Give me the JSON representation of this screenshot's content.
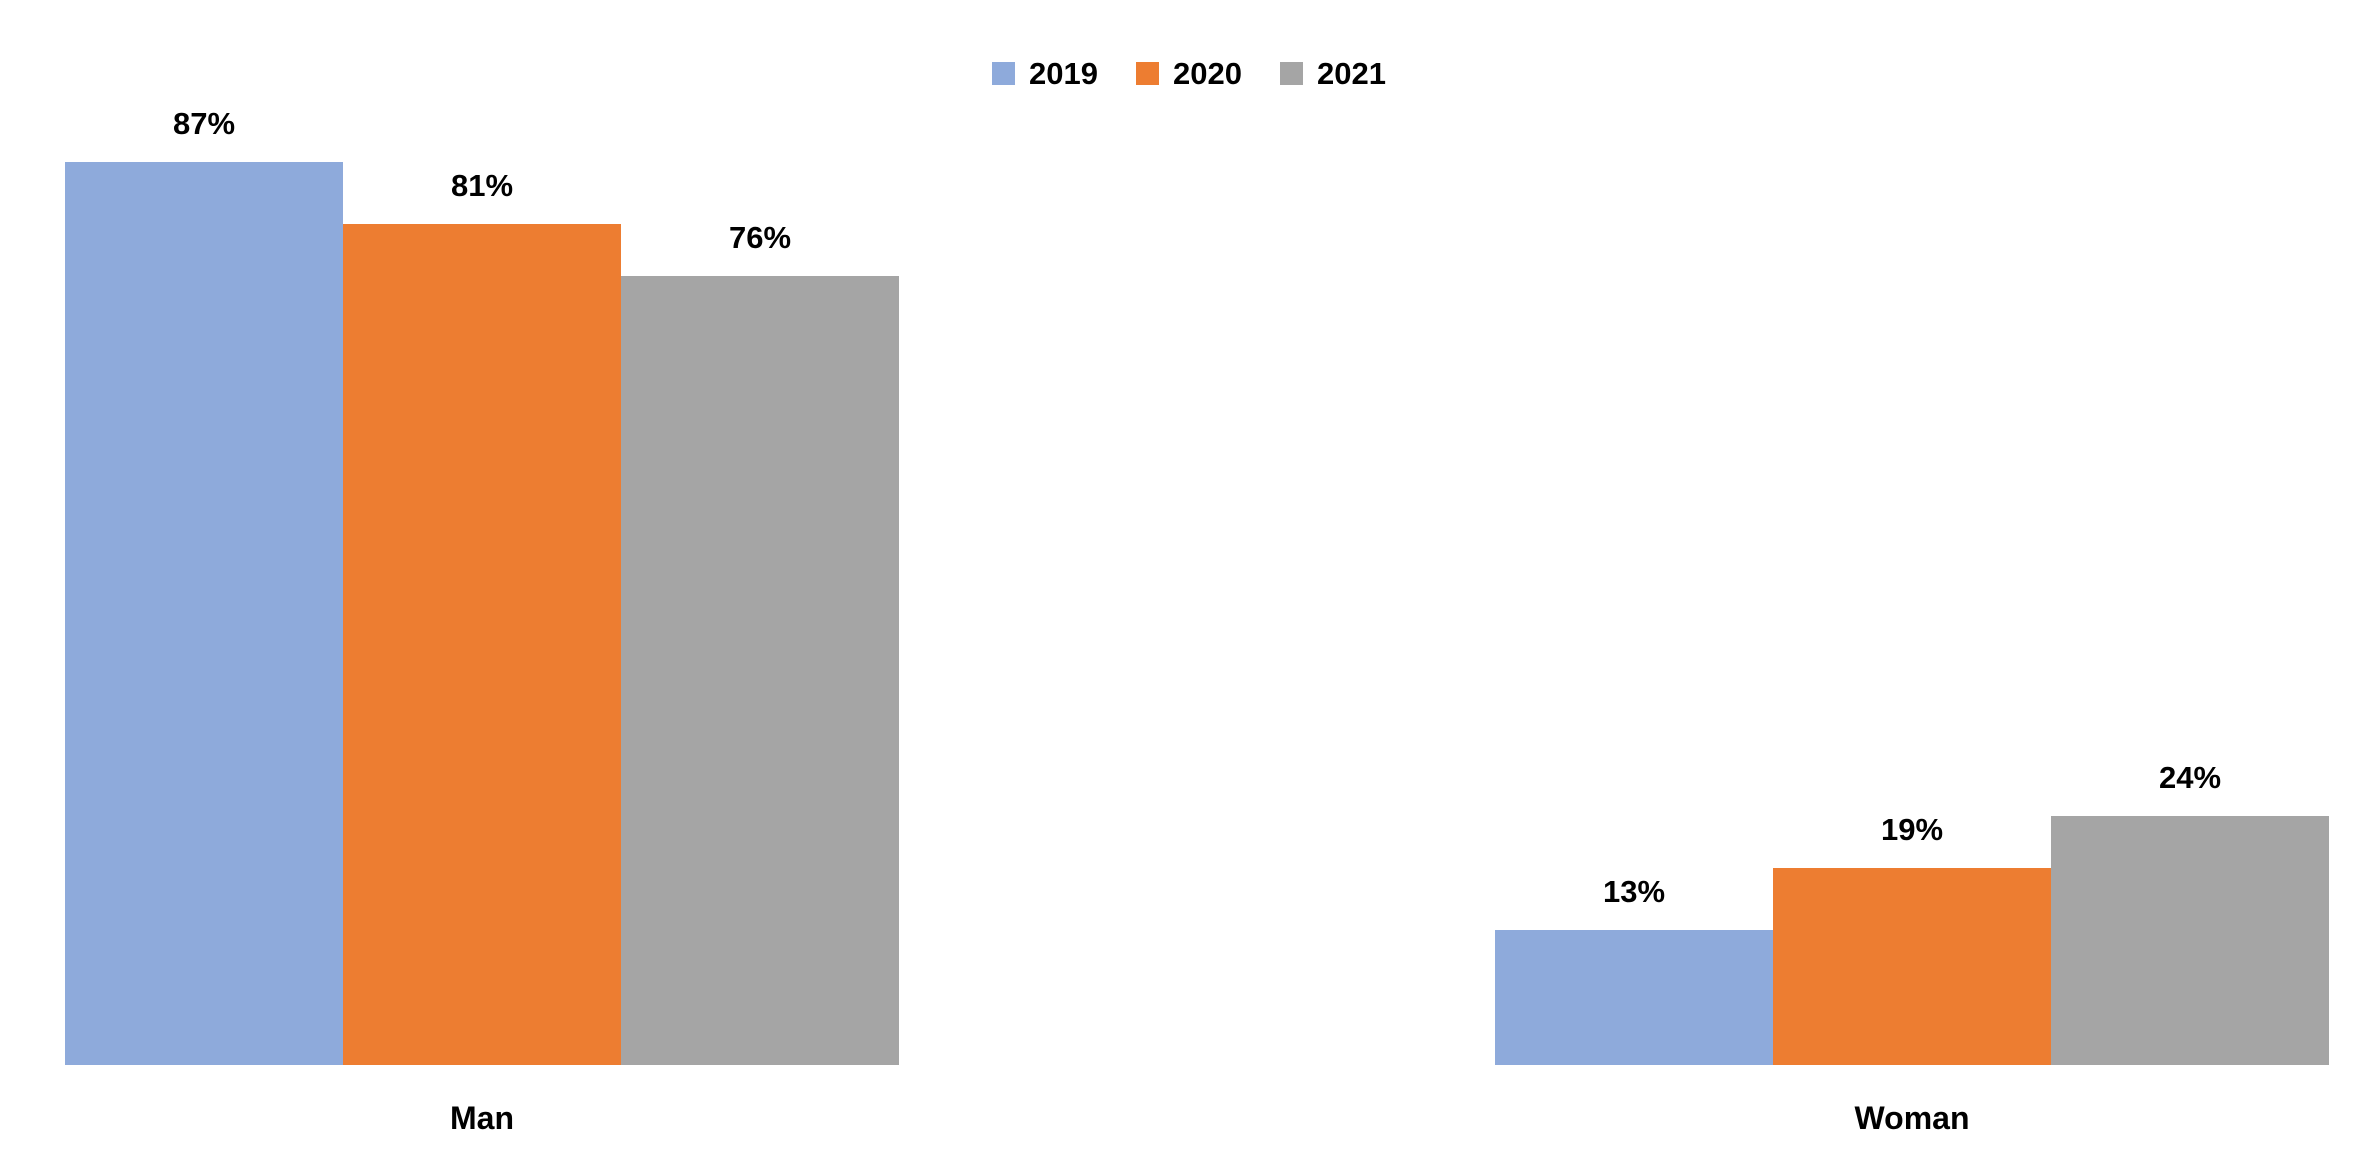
{
  "chart_data": {
    "type": "bar",
    "title": "",
    "xlabel": "",
    "ylabel": "",
    "categories": [
      "Man",
      "Woman"
    ],
    "series": [
      {
        "name": "2019",
        "color": "#8EAADB",
        "values": [
          87,
          13
        ]
      },
      {
        "name": "2020",
        "color": "#ED7D31",
        "values": [
          81,
          19
        ]
      },
      {
        "name": "2021",
        "color": "#A5A5A5",
        "values": [
          76,
          24
        ]
      }
    ],
    "data_labels": [
      [
        "87%",
        "13%"
      ],
      [
        "81%",
        "19%"
      ],
      [
        "76%",
        "24%"
      ]
    ],
    "value_suffix": "%",
    "ylim": [
      0,
      100
    ],
    "grid": false,
    "axes_visible": false,
    "legend_position": "top-center",
    "label_color": "#000000",
    "background_color": "#FFFFFF"
  }
}
